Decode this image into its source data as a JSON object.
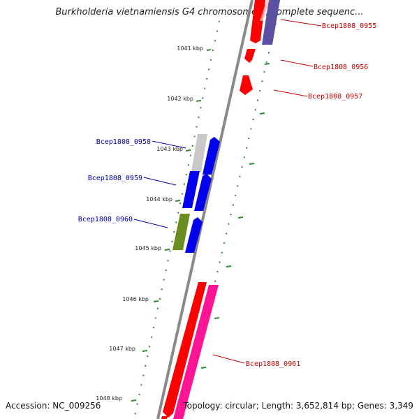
{
  "title": "Burkholderia vietnamiensis G4 chromosome 1, complete sequenc...",
  "accession": "Accession: NC_009256",
  "summary": "Topology: circular; Length: 3,652,814 bp; Genes: 3,349",
  "scale_labels": [
    "1041 kbp",
    "1042 kbp",
    "1043 kbp",
    "1044 kbp",
    "1045 kbp",
    "1046 kbp",
    "1047 kbp",
    "1048 kbp"
  ],
  "genes": [
    {
      "label": "Bcep1808_0955",
      "color": "#cc0000"
    },
    {
      "label": "Bcep1808_0956",
      "color": "#cc0000"
    },
    {
      "label": "Bcep1808_0957",
      "color": "#cc0000"
    },
    {
      "label": "Bcep1808_0958",
      "color": "#0000aa"
    },
    {
      "label": "Bcep1808_0959",
      "color": "#0000aa"
    },
    {
      "label": "Bcep1808_0960",
      "color": "#0000aa"
    },
    {
      "label": "Bcep1808_0961",
      "color": "#cc0000"
    }
  ],
  "colors": {
    "backbone": "#8a8a8a",
    "scale_ticks": "#2e8b2e",
    "feature_red": "#ff0000",
    "feature_purple": "#5a4fa0",
    "feature_blue": "#0000ee",
    "feature_gray": "#c8c8c8",
    "feature_olive": "#6b8e23",
    "feature_pink": "#ff1493"
  }
}
